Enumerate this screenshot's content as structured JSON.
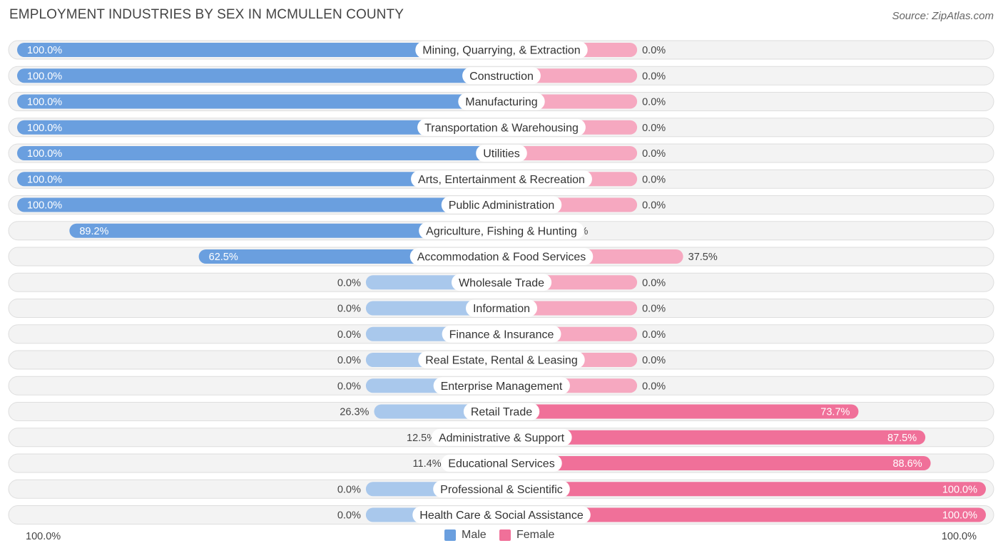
{
  "chart_data": {
    "type": "bar",
    "orientation": "horizontal-diverging",
    "title": "EMPLOYMENT INDUSTRIES BY SEX IN MCMULLEN COUNTY",
    "source": "Source: ZipAtlas.com",
    "categories": [
      "Mining, Quarrying, & Extraction",
      "Construction",
      "Manufacturing",
      "Transportation & Warehousing",
      "Utilities",
      "Arts, Entertainment & Recreation",
      "Public Administration",
      "Agriculture, Fishing & Hunting",
      "Accommodation & Food Services",
      "Wholesale Trade",
      "Information",
      "Finance & Insurance",
      "Real Estate, Rental & Leasing",
      "Enterprise Management",
      "Retail Trade",
      "Administrative & Support",
      "Educational Services",
      "Professional & Scientific",
      "Health Care & Social Assistance"
    ],
    "series": [
      {
        "name": "Male",
        "color": "#6a9fdf",
        "color_light": "#a9c8ec",
        "values": [
          100.0,
          100.0,
          100.0,
          100.0,
          100.0,
          100.0,
          100.0,
          89.2,
          62.5,
          0.0,
          0.0,
          0.0,
          0.0,
          0.0,
          26.3,
          12.5,
          11.4,
          0.0,
          0.0
        ],
        "labels": [
          "100.0%",
          "100.0%",
          "100.0%",
          "100.0%",
          "100.0%",
          "100.0%",
          "100.0%",
          "89.2%",
          "62.5%",
          "0.0%",
          "0.0%",
          "0.0%",
          "0.0%",
          "0.0%",
          "26.3%",
          "12.5%",
          "11.4%",
          "0.0%",
          "0.0%"
        ]
      },
      {
        "name": "Female",
        "color": "#f07099",
        "color_light": "#f6a8c0",
        "values": [
          0.0,
          0.0,
          0.0,
          0.0,
          0.0,
          0.0,
          0.0,
          10.8,
          37.5,
          0.0,
          0.0,
          0.0,
          0.0,
          0.0,
          73.7,
          87.5,
          88.6,
          100.0,
          100.0
        ],
        "labels": [
          "0.0%",
          "0.0%",
          "0.0%",
          "0.0%",
          "0.0%",
          "0.0%",
          "0.0%",
          "10.8%",
          "37.5%",
          "0.0%",
          "0.0%",
          "0.0%",
          "0.0%",
          "0.0%",
          "73.7%",
          "87.5%",
          "88.6%",
          "100.0%",
          "100.0%"
        ]
      }
    ],
    "axis": {
      "min_label": "100.0%",
      "max_label": "100.0%"
    },
    "xlim": [
      -100,
      100
    ],
    "legend_position": "bottom-center",
    "grid": false
  }
}
